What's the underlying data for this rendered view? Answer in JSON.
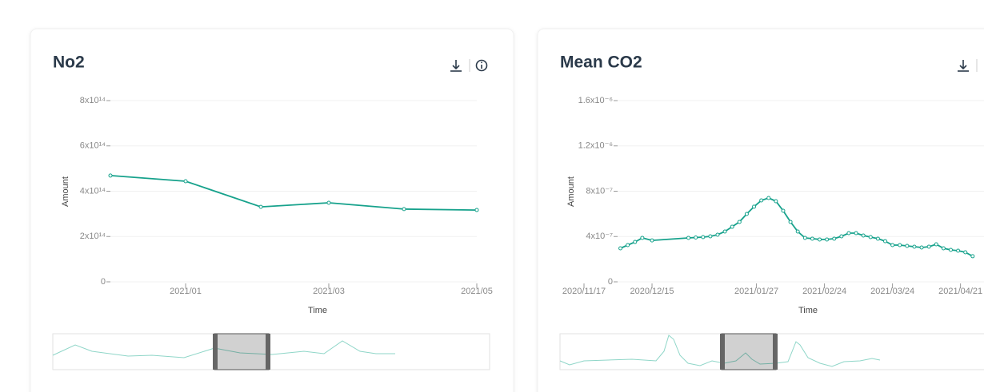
{
  "chart_data": [
    {
      "type": "line",
      "title": "No2",
      "x_label": "Time",
      "y_label": "Amount",
      "x": [
        "2020/12",
        "2021/01",
        "2021/02",
        "2021/03",
        "2021/04",
        "2021/05"
      ],
      "values": [
        469000000000000.0,
        444000000000000.0,
        331000000000000.0,
        349000000000000.0,
        321000000000000.0,
        317000000000000.0
      ],
      "color": "#17a28c",
      "xlim": [
        "2020/12",
        "2021/05"
      ],
      "xticks": [
        "2021/01",
        "2021/03",
        "2021/05"
      ],
      "ylim": [
        0,
        800000000000000.0
      ],
      "yticks": [
        0,
        {
          "value": 200000000000000.0,
          "label": "2x10¹⁴"
        },
        {
          "value": 400000000000000.0,
          "label": "4x10¹⁴"
        },
        {
          "value": 600000000000000.0,
          "label": "6x10¹⁴"
        },
        {
          "value": 800000000000000.0,
          "label": "8x10¹⁴"
        }
      ],
      "grid": true
    },
    {
      "type": "line",
      "title": "Mean CO2",
      "x_label": "Time",
      "y_label": "Amount",
      "x": [
        "2020/12/02",
        "2020/12/05",
        "2020/12/08",
        "2020/12/11",
        "2020/12/15",
        "2020/12/30",
        "2021/01/02",
        "2021/01/05",
        "2021/01/08",
        "2021/01/11",
        "2021/01/14",
        "2021/01/17",
        "2021/01/20",
        "2021/01/23",
        "2021/01/26",
        "2021/01/29",
        "2021/02/01",
        "2021/02/04",
        "2021/02/07",
        "2021/02/10",
        "2021/02/13",
        "2021/02/16",
        "2021/02/19",
        "2021/02/22",
        "2021/02/25",
        "2021/02/28",
        "2021/03/03",
        "2021/03/06",
        "2021/03/09",
        "2021/03/12",
        "2021/03/15",
        "2021/03/18",
        "2021/03/21",
        "2021/03/24",
        "2021/03/27",
        "2021/03/30",
        "2021/04/02",
        "2021/04/05",
        "2021/04/08",
        "2021/04/11",
        "2021/04/14",
        "2021/04/17",
        "2021/04/20",
        "2021/04/23",
        "2021/04/26"
      ],
      "values": [
        2.96e-07,
        3.24e-07,
        3.52e-07,
        3.88e-07,
        3.66e-07,
        3.88e-07,
        3.91e-07,
        3.95e-07,
        4.02e-07,
        4.16e-07,
        4.44e-07,
        4.86e-07,
        5.29e-07,
        5.99e-07,
        6.63e-07,
        7.19e-07,
        7.4e-07,
        7.12e-07,
        6.27e-07,
        5.29e-07,
        4.44e-07,
        3.88e-07,
        3.81e-07,
        3.74e-07,
        3.74e-07,
        3.81e-07,
        4.02e-07,
        4.3e-07,
        4.3e-07,
        4.09e-07,
        3.95e-07,
        3.81e-07,
        3.59e-07,
        3.24e-07,
        3.24e-07,
        3.17e-07,
        3.1e-07,
        3.03e-07,
        3.1e-07,
        3.31e-07,
        2.96e-07,
        2.82e-07,
        2.75e-07,
        2.61e-07,
        2.26e-07
      ],
      "color": "#17a28c",
      "xlim": [
        "2020/11/17",
        "2021/05/01"
      ],
      "xticks": [
        "2020/11/17",
        "2020/12/15",
        "2021/01/27",
        "2021/02/24",
        "2021/03/24",
        "2021/04/21"
      ],
      "ylim": [
        0,
        1.6e-06
      ],
      "yticks": [
        0,
        {
          "value": 4e-07,
          "label": "4x10⁻⁷"
        },
        {
          "value": 8e-07,
          "label": "8x10⁻⁷"
        },
        {
          "value": 1.2e-06,
          "label": "1.2x10⁻⁶"
        },
        {
          "value": 1.6e-06,
          "label": "1.6x10⁻⁶"
        }
      ],
      "grid": true
    }
  ]
}
